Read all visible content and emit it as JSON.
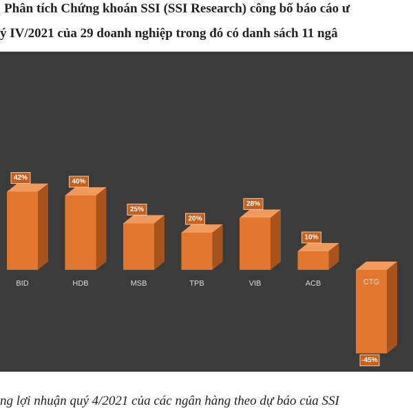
{
  "article": {
    "lines": [
      "Phân tích Chứng khoán SSI (SSI Research) công bố báo cáo ư",
      "ý IV/2021 của 29 doanh nghiệp trong đó có danh sách 11 ngâ"
    ]
  },
  "chart_data": {
    "type": "bar",
    "categories": [
      "BID",
      "HDB",
      "MSB",
      "TPB",
      "VIB",
      "ACB",
      "CTG"
    ],
    "values": [
      42,
      40,
      25,
      20,
      28,
      10,
      -45
    ],
    "value_labels": [
      "42%",
      "40%",
      "25%",
      "20%",
      "28%",
      "10%",
      "-45%"
    ],
    "color": "#e2782f"
  },
  "caption": "ng lợi nhuận quý 4/2021 của các ngân hàng theo dự báo của SSI"
}
